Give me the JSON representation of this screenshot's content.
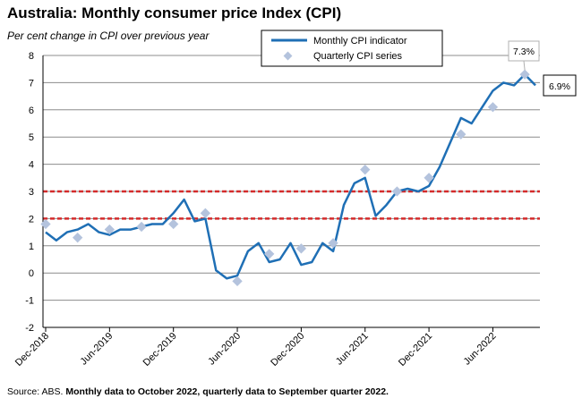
{
  "title": "Australia: Monthly consumer price Index (CPI)",
  "subtitle": "Per cent change in CPI over previous year",
  "footer": {
    "source": "Source: ABS.",
    "note": "Monthly data to October 2022, quarterly data to September quarter 2022."
  },
  "colors": {
    "line": "#1f6fb5",
    "marker": "#b4c3dd",
    "reference": "#d42b2b",
    "grid": "#8c8c8c"
  },
  "chart_data": {
    "type": "line",
    "ylim": [
      -2,
      8
    ],
    "yticks": [
      -2,
      -1,
      0,
      1,
      2,
      3,
      4,
      5,
      6,
      7,
      8
    ],
    "xticks": [
      {
        "index": 0,
        "label": "Dec-2018"
      },
      {
        "index": 6,
        "label": "Jun-2019"
      },
      {
        "index": 12,
        "label": "Dec-2019"
      },
      {
        "index": 18,
        "label": "Jun-2020"
      },
      {
        "index": 24,
        "label": "Dec-2020"
      },
      {
        "index": 30,
        "label": "Jun-2021"
      },
      {
        "index": 36,
        "label": "Dec-2021"
      },
      {
        "index": 42,
        "label": "Jun-2022"
      }
    ],
    "x_count": 47,
    "reference_lines": [
      2,
      3
    ],
    "series": [
      {
        "name": "Monthly CPI indicator",
        "values": [
          1.5,
          1.2,
          1.5,
          1.6,
          1.8,
          1.5,
          1.4,
          1.6,
          1.6,
          1.7,
          1.8,
          1.8,
          2.2,
          2.7,
          1.9,
          2.0,
          0.1,
          -0.2,
          -0.1,
          0.8,
          1.1,
          0.4,
          0.5,
          1.1,
          0.3,
          0.4,
          1.1,
          0.8,
          2.5,
          3.3,
          3.5,
          2.1,
          2.5,
          3.0,
          3.1,
          3.0,
          3.2,
          3.9,
          4.8,
          5.7,
          5.5,
          6.1,
          6.7,
          7.0,
          6.9,
          7.3,
          6.9
        ]
      },
      {
        "name": "Quarterly CPI series",
        "points": [
          [
            0,
            1.8
          ],
          [
            3,
            1.3
          ],
          [
            6,
            1.6
          ],
          [
            9,
            1.7
          ],
          [
            12,
            1.8
          ],
          [
            15,
            2.2
          ],
          [
            18,
            -0.3
          ],
          [
            21,
            0.7
          ],
          [
            24,
            0.9
          ],
          [
            27,
            1.1
          ],
          [
            30,
            3.8
          ],
          [
            33,
            3.0
          ],
          [
            36,
            3.5
          ],
          [
            39,
            5.1
          ],
          [
            42,
            6.1
          ],
          [
            45,
            7.3
          ]
        ]
      }
    ],
    "callouts": [
      {
        "label": "7.3%",
        "series": "Quarterly CPI series",
        "index": 45
      },
      {
        "label": "6.9%",
        "series": "Monthly CPI indicator",
        "index": 46
      }
    ]
  }
}
